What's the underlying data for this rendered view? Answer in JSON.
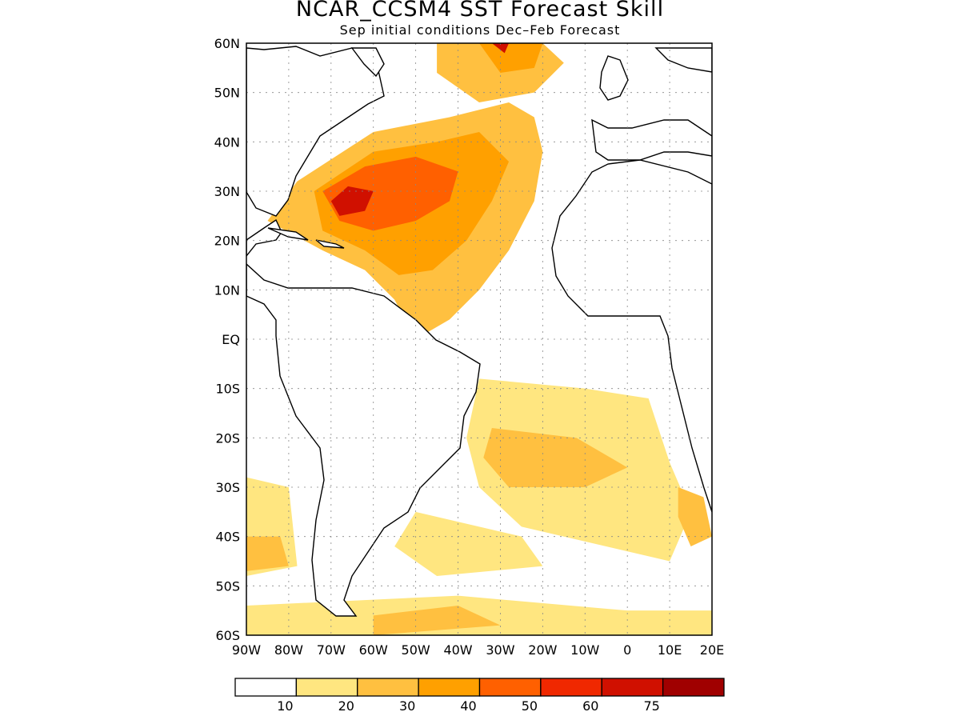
{
  "title": "NCAR_CCSM4 SST Forecast Skill",
  "subtitle": "Sep initial conditions  Dec–Feb Forecast",
  "map": {
    "lon_labels": [
      "90W",
      "80W",
      "70W",
      "60W",
      "50W",
      "40W",
      "30W",
      "20W",
      "10W",
      "0",
      "10E",
      "20E"
    ],
    "lat_labels": [
      "60N",
      "50N",
      "40N",
      "30N",
      "20N",
      "10N",
      "EQ",
      "10S",
      "20S",
      "30S",
      "40S",
      "50S",
      "60S"
    ],
    "lon_range": [
      -90,
      20
    ],
    "lat_range": [
      -60,
      60
    ],
    "grid": "dotted"
  },
  "colorbar": {
    "colors": [
      "#ffffff",
      "#ffe680",
      "#ffc040",
      "#ffa000",
      "#ff6000",
      "#f02800",
      "#d01000",
      "#a00000"
    ],
    "labels": [
      "10",
      "20",
      "30",
      "40",
      "50",
      "60",
      "75"
    ]
  },
  "skill_regions": [
    {
      "level": 2,
      "shape": [
        [
          -78,
          32
        ],
        [
          -60,
          42
        ],
        [
          -42,
          45
        ],
        [
          -28,
          48
        ],
        [
          -22,
          45
        ],
        [
          -20,
          38
        ],
        [
          -22,
          28
        ],
        [
          -28,
          18
        ],
        [
          -35,
          10
        ],
        [
          -42,
          4
        ],
        [
          -50,
          0
        ],
        [
          -55,
          8
        ],
        [
          -62,
          14
        ],
        [
          -72,
          18
        ],
        [
          -85,
          24
        ]
      ]
    },
    {
      "level": 3,
      "shape": [
        [
          -74,
          30
        ],
        [
          -60,
          38
        ],
        [
          -45,
          40
        ],
        [
          -35,
          42
        ],
        [
          -28,
          36
        ],
        [
          -32,
          28
        ],
        [
          -38,
          20
        ],
        [
          -46,
          14
        ],
        [
          -54,
          13
        ],
        [
          -62,
          18
        ],
        [
          -72,
          22
        ]
      ]
    },
    {
      "level": 4,
      "shape": [
        [
          -72,
          30
        ],
        [
          -62,
          35
        ],
        [
          -50,
          37
        ],
        [
          -40,
          34
        ],
        [
          -42,
          28
        ],
        [
          -50,
          24
        ],
        [
          -60,
          22
        ],
        [
          -68,
          24
        ]
      ]
    },
    {
      "level": 6,
      "shape": [
        [
          -70,
          28
        ],
        [
          -66,
          31
        ],
        [
          -60,
          30
        ],
        [
          -62,
          26
        ],
        [
          -68,
          25
        ]
      ]
    },
    {
      "level": 2,
      "shape": [
        [
          -45,
          60
        ],
        [
          -20,
          60
        ],
        [
          -15,
          56
        ],
        [
          -22,
          50
        ],
        [
          -35,
          48
        ],
        [
          -45,
          54
        ]
      ]
    },
    {
      "level": 3,
      "shape": [
        [
          -35,
          60
        ],
        [
          -20,
          60
        ],
        [
          -22,
          55
        ],
        [
          -30,
          54
        ]
      ]
    },
    {
      "level": 6,
      "shape": [
        [
          -32,
          60
        ],
        [
          -28,
          60
        ],
        [
          -29,
          58
        ]
      ]
    },
    {
      "level": 1,
      "shape": [
        [
          -35,
          -8
        ],
        [
          -10,
          -10
        ],
        [
          5,
          -12
        ],
        [
          10,
          -25
        ],
        [
          15,
          -35
        ],
        [
          10,
          -45
        ],
        [
          -5,
          -42
        ],
        [
          -25,
          -38
        ],
        [
          -35,
          -30
        ],
        [
          -38,
          -20
        ]
      ]
    },
    {
      "level": 2,
      "shape": [
        [
          -32,
          -18
        ],
        [
          -12,
          -20
        ],
        [
          0,
          -26
        ],
        [
          -10,
          -30
        ],
        [
          -28,
          -30
        ],
        [
          -34,
          -24
        ]
      ]
    },
    {
      "level": 1,
      "shape": [
        [
          -90,
          -28
        ],
        [
          -80,
          -30
        ],
        [
          -78,
          -46
        ],
        [
          -90,
          -48
        ]
      ]
    },
    {
      "level": 2,
      "shape": [
        [
          -90,
          -40
        ],
        [
          -82,
          -40
        ],
        [
          -80,
          -46
        ],
        [
          -90,
          -47
        ]
      ]
    },
    {
      "level": 1,
      "shape": [
        [
          -90,
          -54
        ],
        [
          -40,
          -52
        ],
        [
          0,
          -55
        ],
        [
          20,
          -55
        ],
        [
          20,
          -60
        ],
        [
          -90,
          -60
        ]
      ]
    },
    {
      "level": 2,
      "shape": [
        [
          -60,
          -56
        ],
        [
          -40,
          -54
        ],
        [
          -30,
          -58
        ],
        [
          -60,
          -60
        ]
      ]
    },
    {
      "level": 1,
      "shape": [
        [
          -50,
          -35
        ],
        [
          -25,
          -40
        ],
        [
          -20,
          -46
        ],
        [
          -45,
          -48
        ],
        [
          -55,
          -42
        ]
      ]
    },
    {
      "level": 2,
      "shape": [
        [
          12,
          -30
        ],
        [
          18,
          -32
        ],
        [
          20,
          -40
        ],
        [
          15,
          -42
        ],
        [
          12,
          -36
        ]
      ]
    }
  ]
}
